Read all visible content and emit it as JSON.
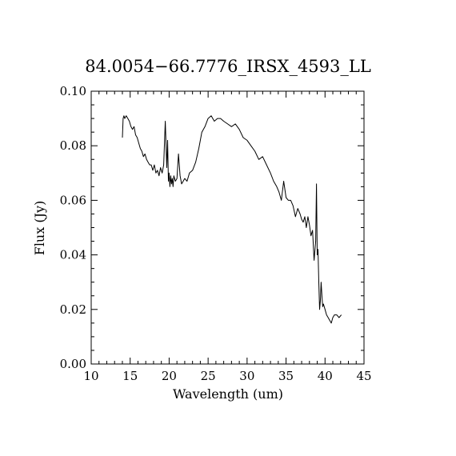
{
  "chart_data": {
    "type": "line",
    "title": "84.0054−66.7776_IRSX_4593_LL",
    "xlabel": "Wavelength (um)",
    "ylabel": "Flux (Jy)",
    "xlim": [
      10,
      45
    ],
    "ylim": [
      0.0,
      0.1
    ],
    "xticks": [
      "10",
      "15",
      "20",
      "25",
      "30",
      "35",
      "40",
      "45"
    ],
    "xtick_values": [
      10,
      15,
      20,
      25,
      30,
      35,
      40,
      45
    ],
    "yticks": [
      "0.00",
      "0.02",
      "0.04",
      "0.06",
      "0.08",
      "0.10"
    ],
    "ytick_values": [
      0.0,
      0.02,
      0.04,
      0.06,
      0.08,
      0.1
    ],
    "grid": false,
    "color": "#000000",
    "x": [
      14.0,
      14.1,
      14.2,
      14.3,
      14.5,
      14.7,
      14.9,
      15.1,
      15.3,
      15.5,
      15.7,
      15.9,
      16.1,
      16.3,
      16.5,
      16.7,
      16.9,
      17.1,
      17.3,
      17.5,
      17.7,
      17.9,
      18.1,
      18.3,
      18.5,
      18.7,
      18.9,
      19.1,
      19.3,
      19.5,
      19.7,
      19.8,
      19.9,
      20.0,
      20.1,
      20.2,
      20.3,
      20.4,
      20.5,
      20.6,
      20.8,
      21.0,
      21.2,
      21.4,
      21.6,
      21.8,
      22.0,
      22.3,
      22.6,
      23.0,
      23.4,
      23.8,
      24.2,
      24.6,
      25.0,
      25.4,
      25.8,
      26.2,
      26.6,
      27.0,
      27.5,
      28.0,
      28.5,
      29.0,
      29.5,
      30.0,
      30.5,
      31.0,
      31.5,
      32.0,
      32.5,
      33.0,
      33.4,
      33.8,
      34.1,
      34.4,
      34.7,
      35.0,
      35.3,
      35.6,
      35.9,
      36.2,
      36.5,
      36.8,
      37.0,
      37.2,
      37.4,
      37.6,
      37.8,
      38.0,
      38.2,
      38.4,
      38.6,
      38.8,
      38.9,
      39.0,
      39.1,
      39.2,
      39.3,
      39.4,
      39.5,
      39.6,
      39.7,
      39.8,
      40.0,
      40.2,
      40.4,
      40.6,
      40.8,
      41.0,
      41.2,
      41.5,
      41.8,
      42.1
    ],
    "y": [
      0.083,
      0.09,
      0.091,
      0.09,
      0.091,
      0.09,
      0.089,
      0.087,
      0.086,
      0.087,
      0.084,
      0.083,
      0.081,
      0.079,
      0.078,
      0.076,
      0.077,
      0.075,
      0.074,
      0.073,
      0.073,
      0.071,
      0.073,
      0.07,
      0.071,
      0.069,
      0.072,
      0.07,
      0.073,
      0.089,
      0.072,
      0.082,
      0.067,
      0.07,
      0.065,
      0.069,
      0.066,
      0.068,
      0.065,
      0.069,
      0.067,
      0.068,
      0.077,
      0.069,
      0.066,
      0.067,
      0.068,
      0.067,
      0.07,
      0.071,
      0.074,
      0.079,
      0.085,
      0.087,
      0.09,
      0.091,
      0.089,
      0.09,
      0.09,
      0.089,
      0.088,
      0.087,
      0.088,
      0.086,
      0.083,
      0.082,
      0.08,
      0.078,
      0.075,
      0.076,
      0.073,
      0.07,
      0.067,
      0.065,
      0.063,
      0.06,
      0.067,
      0.061,
      0.06,
      0.06,
      0.058,
      0.054,
      0.057,
      0.055,
      0.053,
      0.052,
      0.054,
      0.05,
      0.054,
      0.051,
      0.047,
      0.049,
      0.038,
      0.045,
      0.066,
      0.04,
      0.042,
      0.03,
      0.02,
      0.023,
      0.03,
      0.025,
      0.021,
      0.022,
      0.02,
      0.018,
      0.017,
      0.016,
      0.015,
      0.017,
      0.018,
      0.018,
      0.017,
      0.018
    ]
  }
}
